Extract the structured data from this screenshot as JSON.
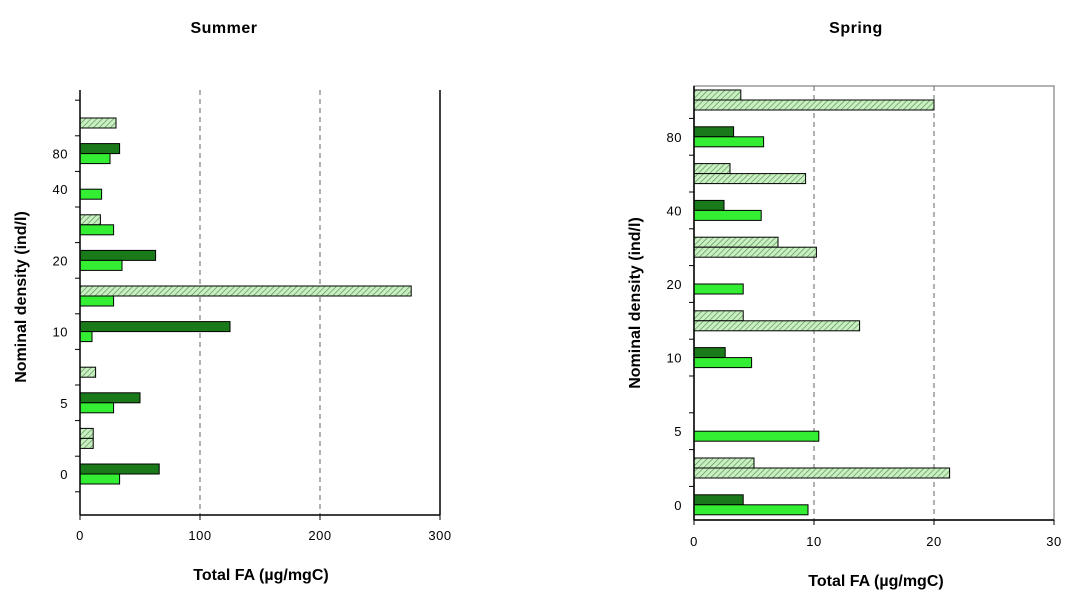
{
  "chart_data": [
    {
      "type": "bar",
      "orientation": "horizontal",
      "title": "Summer",
      "xlabel": "Total FA (µg/mgC)",
      "ylabel": "Nominal density (ind/l)",
      "xlim": [
        0,
        300
      ],
      "x_ticks": [
        "0",
        "100",
        "200",
        "300"
      ],
      "y_tick_labels": [
        {
          "label": "80",
          "slot": 1
        },
        {
          "label": "40",
          "slot": 2
        },
        {
          "label": "20",
          "slot": 4
        },
        {
          "label": "10",
          "slot": 6
        },
        {
          "label": "5",
          "slot": 8
        },
        {
          "label": "0",
          "slot": 10
        }
      ],
      "grid_x": [
        100,
        200
      ],
      "n_slots": 11,
      "bars": [
        {
          "slot": 0,
          "position": "lower",
          "style": "hatched",
          "value": 30
        },
        {
          "slot": 1,
          "position": "upper",
          "style": "dark",
          "value": 33
        },
        {
          "slot": 1,
          "position": "lower",
          "style": "light",
          "value": 25
        },
        {
          "slot": 2,
          "position": "lower",
          "style": "light",
          "value": 18
        },
        {
          "slot": 3,
          "position": "upper",
          "style": "hatched",
          "value": 17
        },
        {
          "slot": 3,
          "position": "lower",
          "style": "light",
          "value": 28
        },
        {
          "slot": 4,
          "position": "upper",
          "style": "dark",
          "value": 63
        },
        {
          "slot": 4,
          "position": "lower",
          "style": "light",
          "value": 35
        },
        {
          "slot": 5,
          "position": "upper",
          "style": "hatched",
          "value": 276
        },
        {
          "slot": 5,
          "position": "lower",
          "style": "light",
          "value": 28
        },
        {
          "slot": 6,
          "position": "upper",
          "style": "dark",
          "value": 125
        },
        {
          "slot": 6,
          "position": "lower",
          "style": "light",
          "value": 10
        },
        {
          "slot": 7,
          "position": "lower",
          "style": "hatched",
          "value": 13
        },
        {
          "slot": 8,
          "position": "upper",
          "style": "dark",
          "value": 50
        },
        {
          "slot": 8,
          "position": "lower",
          "style": "light",
          "value": 28
        },
        {
          "slot": 9,
          "position": "upper",
          "style": "hatched",
          "value": 11
        },
        {
          "slot": 9,
          "position": "lower",
          "style": "hatched",
          "value": 11
        },
        {
          "slot": 10,
          "position": "upper",
          "style": "dark",
          "value": 66
        },
        {
          "slot": 10,
          "position": "lower",
          "style": "light",
          "value": 33
        }
      ]
    },
    {
      "type": "bar",
      "orientation": "horizontal",
      "title": "Spring",
      "xlabel": "Total FA (µg/mgC)",
      "ylabel": "Nominal density (ind/l)",
      "xlim": [
        0,
        30
      ],
      "x_ticks": [
        "0",
        "10",
        "20",
        "30"
      ],
      "y_tick_labels": [
        {
          "label": "80",
          "slot": 1
        },
        {
          "label": "40",
          "slot": 3
        },
        {
          "label": "20",
          "slot": 5
        },
        {
          "label": "10",
          "slot": 7
        },
        {
          "label": "5",
          "slot": 9
        },
        {
          "label": "0",
          "slot": 11
        }
      ],
      "grid_x": [
        10,
        20
      ],
      "n_slots": 12,
      "bars": [
        {
          "slot": 0,
          "position": "upper",
          "style": "hatched",
          "value": 3.9
        },
        {
          "slot": 0,
          "position": "lower",
          "style": "hatched",
          "value": 20.0
        },
        {
          "slot": 1,
          "position": "upper",
          "style": "dark",
          "value": 3.3
        },
        {
          "slot": 1,
          "position": "lower",
          "style": "light",
          "value": 5.8
        },
        {
          "slot": 2,
          "position": "upper",
          "style": "hatched",
          "value": 3.0
        },
        {
          "slot": 2,
          "position": "lower",
          "style": "hatched",
          "value": 9.3
        },
        {
          "slot": 3,
          "position": "upper",
          "style": "dark",
          "value": 2.5
        },
        {
          "slot": 3,
          "position": "lower",
          "style": "light",
          "value": 5.6
        },
        {
          "slot": 4,
          "position": "upper",
          "style": "hatched",
          "value": 7.0
        },
        {
          "slot": 4,
          "position": "lower",
          "style": "hatched",
          "value": 10.2
        },
        {
          "slot": 5,
          "position": "lower",
          "style": "light",
          "value": 4.1
        },
        {
          "slot": 6,
          "position": "upper",
          "style": "hatched",
          "value": 4.1
        },
        {
          "slot": 6,
          "position": "lower",
          "style": "hatched",
          "value": 13.8
        },
        {
          "slot": 7,
          "position": "upper",
          "style": "dark",
          "value": 2.6
        },
        {
          "slot": 7,
          "position": "lower",
          "style": "light",
          "value": 4.8
        },
        {
          "slot": 9,
          "position": "lower",
          "style": "light",
          "value": 10.4
        },
        {
          "slot": 10,
          "position": "upper",
          "style": "hatched",
          "value": 5.0
        },
        {
          "slot": 10,
          "position": "lower",
          "style": "hatched",
          "value": 21.3
        },
        {
          "slot": 11,
          "position": "upper",
          "style": "dark",
          "value": 4.1
        },
        {
          "slot": 11,
          "position": "lower",
          "style": "light",
          "value": 9.5
        }
      ]
    }
  ],
  "colors": {
    "dark": "#1a7a1a",
    "light": "#33ee33",
    "hatched_bg": "#c8f0c0",
    "hatched_line": "#5a8a5a",
    "grid": "#666666",
    "axis": "#000000",
    "frame": "#999999"
  }
}
